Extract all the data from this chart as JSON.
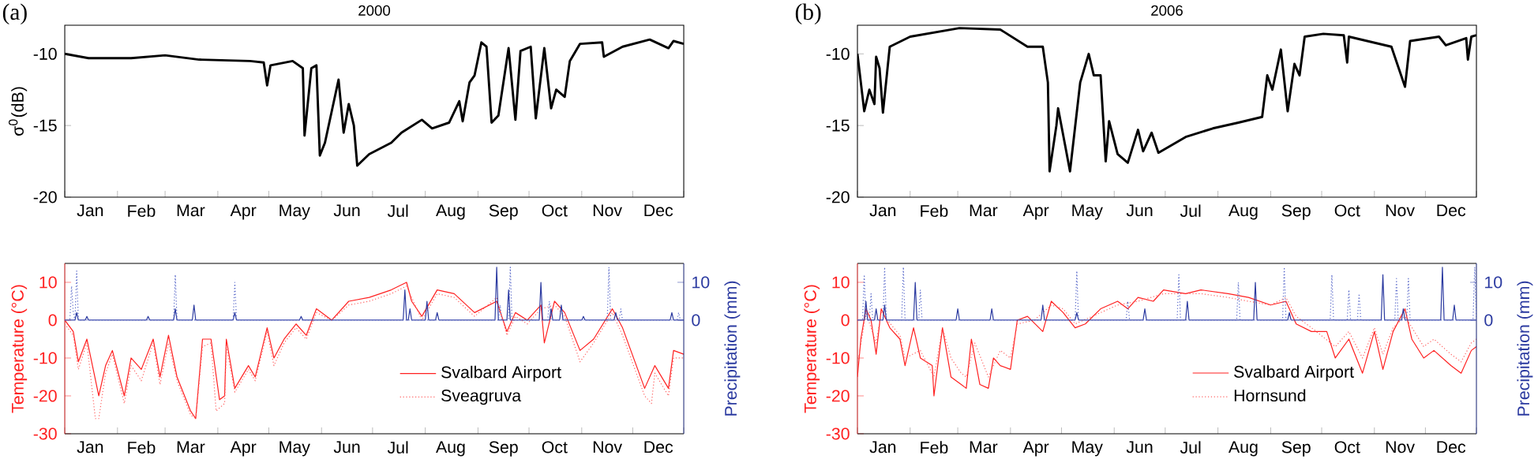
{
  "chart_data": [
    {
      "type": "line",
      "title": "2000",
      "annotations": [
        "(a)"
      ],
      "ylabel": "σ$^{0}$(dB)",
      "xlim": [
        "--01-01",
        "--12-31"
      ],
      "ylim": [
        -20,
        -8
      ],
      "yticks": [
        -10,
        -15,
        -20
      ],
      "xticks": [
        {
          "value": "--01-01",
          "label": null
        },
        {
          "value": "--01-16",
          "label": "Jan"
        },
        {
          "value": "--02-01",
          "label": null
        },
        {
          "value": "--02-15",
          "label": "Feb"
        },
        {
          "value": "--03-01",
          "label": null
        },
        {
          "value": "--03-16",
          "label": "Mar"
        },
        {
          "value": "--04-01",
          "label": null
        },
        {
          "value": "--04-16",
          "label": "Apr"
        },
        {
          "value": "--05-01",
          "label": null
        },
        {
          "value": "--05-16",
          "label": "May"
        },
        {
          "value": "--06-01",
          "label": null
        },
        {
          "value": "--06-16",
          "label": "Jun"
        },
        {
          "value": "--07-01",
          "label": null
        },
        {
          "value": "--07-16",
          "label": "Jul"
        },
        {
          "value": "--08-01",
          "label": null
        },
        {
          "value": "--08-16",
          "label": "Aug"
        },
        {
          "value": "--09-01",
          "label": null
        },
        {
          "value": "--09-16",
          "label": "Sep"
        },
        {
          "value": "--10-01",
          "label": null
        },
        {
          "value": "--10-16",
          "label": "Oct"
        },
        {
          "value": "--11-01",
          "label": null
        },
        {
          "value": "--11-16",
          "label": "Nov"
        },
        {
          "value": "--12-01",
          "label": null
        },
        {
          "value": "--12-16",
          "label": "Dec"
        },
        {
          "value": "--12-31",
          "label": null
        }
      ],
      "series": [
        {
          "color": "#000000",
          "x": [
            "--01-01",
            "--01-15",
            "--02-09",
            "--03-01",
            "--03-21",
            "--04-20",
            "--04-28",
            "--04-30",
            "--05-02",
            "--05-15",
            "--05-21",
            "--05-22",
            "--05-26",
            "--05-29",
            "--05-31",
            "--06-03",
            "--06-11",
            "--06-14",
            "--06-17",
            "--06-20",
            "--06-22",
            "--06-29",
            "--07-12",
            "--07-18",
            "--07-30",
            "--08-05",
            "--08-15",
            "--08-21",
            "--08-23",
            "--08-27",
            "--08-30",
            "--09-03",
            "--09-06",
            "--09-09",
            "--09-13",
            "--09-19",
            "--09-23",
            "--09-26",
            "--10-02",
            "--10-05",
            "--10-10",
            "--10-14",
            "--10-17",
            "--10-22",
            "--10-25",
            "--10-31",
            "--11-13",
            "--11-14",
            "--11-25",
            "--12-11",
            "--12-22",
            "--12-25",
            "--12-31"
          ],
          "values": [
            -10.0,
            -10.3,
            -10.3,
            -10.1,
            -10.4,
            -10.5,
            -10.6,
            -12.2,
            -10.8,
            -10.5,
            -11.0,
            -15.7,
            -11.0,
            -10.8,
            -17.1,
            -16.2,
            -11.8,
            -15.5,
            -13.5,
            -15.0,
            -17.8,
            -17.0,
            -16.2,
            -15.5,
            -14.6,
            -15.2,
            -14.8,
            -13.3,
            -14.7,
            -12.0,
            -11.5,
            -9.2,
            -9.5,
            -14.8,
            -14.3,
            -9.6,
            -14.6,
            -9.8,
            -9.5,
            -14.5,
            -9.6,
            -13.8,
            -12.5,
            -13.0,
            -10.5,
            -9.3,
            -9.2,
            -10.2,
            -9.5,
            -9.0,
            -9.6,
            -9.1,
            -9.3
          ]
        }
      ]
    },
    {
      "type": "line",
      "title": "2006",
      "annotations": [
        "(b)"
      ],
      "xlim": [
        "--01-01",
        "--12-31"
      ],
      "ylim": [
        -20,
        -8
      ],
      "yticks": [
        -10,
        -15,
        -20
      ],
      "xticks": [
        {
          "value": "--01-01",
          "label": null
        },
        {
          "value": "--01-16",
          "label": "Jan"
        },
        {
          "value": "--02-01",
          "label": null
        },
        {
          "value": "--02-15",
          "label": "Feb"
        },
        {
          "value": "--03-01",
          "label": null
        },
        {
          "value": "--03-16",
          "label": "Mar"
        },
        {
          "value": "--04-01",
          "label": null
        },
        {
          "value": "--04-16",
          "label": "Apr"
        },
        {
          "value": "--05-01",
          "label": null
        },
        {
          "value": "--05-16",
          "label": "May"
        },
        {
          "value": "--06-01",
          "label": null
        },
        {
          "value": "--06-16",
          "label": "Jun"
        },
        {
          "value": "--07-01",
          "label": null
        },
        {
          "value": "--07-16",
          "label": "Jul"
        },
        {
          "value": "--08-01",
          "label": null
        },
        {
          "value": "--08-16",
          "label": "Aug"
        },
        {
          "value": "--09-01",
          "label": null
        },
        {
          "value": "--09-16",
          "label": "Sep"
        },
        {
          "value": "--10-01",
          "label": null
        },
        {
          "value": "--10-16",
          "label": "Oct"
        },
        {
          "value": "--11-01",
          "label": null
        },
        {
          "value": "--11-16",
          "label": "Nov"
        },
        {
          "value": "--12-01",
          "label": null
        },
        {
          "value": "--12-16",
          "label": "Dec"
        },
        {
          "value": "--12-31",
          "label": null
        }
      ],
      "series": [
        {
          "color": "#000000",
          "x": [
            "--01-01",
            "--01-05",
            "--01-08",
            "--01-11",
            "--01-12",
            "--01-14",
            "--01-16",
            "--01-20",
            "--02-01",
            "--03-02",
            "--03-26",
            "--04-11",
            "--04-20",
            "--04-23",
            "--04-24",
            "--04-28",
            "--04-29",
            "--05-03",
            "--05-06",
            "--05-12",
            "--05-17",
            "--05-20",
            "--05-24",
            "--05-27",
            "--05-29",
            "--06-03",
            "--06-09",
            "--06-15",
            "--06-18",
            "--06-23",
            "--06-27",
            "--07-13",
            "--07-29",
            "--08-13",
            "--08-27",
            "--08-30",
            "--09-02",
            "--09-07",
            "--09-11",
            "--09-15",
            "--09-18",
            "--09-21",
            "--10-02",
            "--10-14",
            "--10-16",
            "--10-17",
            "--11-11",
            "--11-19",
            "--11-22",
            "--12-09",
            "--12-13",
            "--12-25",
            "--12-26",
            "--12-28",
            "--12-31"
          ],
          "values": [
            -10.0,
            -14.0,
            -12.5,
            -13.5,
            -10.2,
            -11.0,
            -14.1,
            -9.5,
            -8.8,
            -8.2,
            -8.3,
            -9.5,
            -9.5,
            -12.0,
            -18.2,
            -15.0,
            -13.8,
            -16.3,
            -18.2,
            -12.0,
            -10.0,
            -11.5,
            -11.5,
            -17.5,
            -14.7,
            -17.0,
            -17.6,
            -15.3,
            -16.8,
            -15.5,
            -16.9,
            -15.8,
            -15.2,
            -14.8,
            -14.4,
            -11.5,
            -12.5,
            -9.7,
            -14.0,
            -10.7,
            -11.5,
            -8.8,
            -8.6,
            -8.7,
            -10.6,
            -8.8,
            -9.5,
            -12.3,
            -9.1,
            -8.8,
            -9.4,
            -8.9,
            -10.4,
            -8.8,
            -8.7
          ]
        }
      ]
    },
    {
      "type": "line",
      "ylabel": "Temperature (°C)",
      "y2label": "Precipitation (mm)",
      "legend": "bottom",
      "xlim": [
        "--01-01",
        "--12-31"
      ],
      "ylim": [
        -30,
        15
      ],
      "yticks": [
        10,
        0,
        -10,
        -20,
        -30
      ],
      "y2lim": [
        -30,
        15
      ],
      "y2ticks": [
        0,
        10
      ],
      "xticks": [
        {
          "value": "--01-01",
          "label": null
        },
        {
          "value": "--01-16",
          "label": "Jan"
        },
        {
          "value": "--02-01",
          "label": null
        },
        {
          "value": "--02-15",
          "label": "Feb"
        },
        {
          "value": "--03-01",
          "label": null
        },
        {
          "value": "--03-16",
          "label": "Mar"
        },
        {
          "value": "--04-01",
          "label": null
        },
        {
          "value": "--04-16",
          "label": "Apr"
        },
        {
          "value": "--05-01",
          "label": null
        },
        {
          "value": "--05-16",
          "label": "May"
        },
        {
          "value": "--06-01",
          "label": null
        },
        {
          "value": "--06-16",
          "label": "Jun"
        },
        {
          "value": "--07-01",
          "label": null
        },
        {
          "value": "--07-16",
          "label": "Jul"
        },
        {
          "value": "--08-01",
          "label": null
        },
        {
          "value": "--08-16",
          "label": "Aug"
        },
        {
          "value": "--09-01",
          "label": null
        },
        {
          "value": "--09-16",
          "label": "Sep"
        },
        {
          "value": "--10-01",
          "label": null
        },
        {
          "value": "--10-16",
          "label": "Oct"
        },
        {
          "value": "--11-01",
          "label": null
        },
        {
          "value": "--11-16",
          "label": "Nov"
        },
        {
          "value": "--12-01",
          "label": null
        },
        {
          "value": "--12-16",
          "label": "Dec"
        },
        {
          "value": "--12-31",
          "label": null
        }
      ],
      "series": [
        {
          "name": "Svalbard Airport",
          "color": "#ff2020",
          "line_style": "solid",
          "x": [
            "--01-01",
            "--01-06",
            "--01-09",
            "--01-14",
            "--01-21",
            "--01-25",
            "--01-29",
            "--02-05",
            "--02-09",
            "--02-15",
            "--02-22",
            "--02-26",
            "--03-03",
            "--03-08",
            "--03-16",
            "--03-19",
            "--03-23",
            "--03-28",
            "--04-02",
            "--04-05",
            "--04-06",
            "--04-11",
            "--04-19",
            "--04-23",
            "--04-30",
            "--05-04",
            "--05-10",
            "--05-17",
            "--05-23",
            "--05-29",
            "--06-07",
            "--06-17",
            "--06-29",
            "--07-12",
            "--07-21",
            "--07-24",
            "--07-30",
            "--08-08",
            "--08-18",
            "--08-30",
            "--09-12",
            "--09-18",
            "--09-23",
            "--09-30",
            "--10-08",
            "--10-10",
            "--10-16",
            "--10-22",
            "--10-31",
            "--11-08",
            "--11-19",
            "--11-25",
            "--12-08",
            "--12-14",
            "--12-22",
            "--12-25",
            "--12-31"
          ],
          "values": [
            0,
            -3,
            -11,
            -5,
            -20,
            -12,
            -8,
            -20,
            -10,
            -13,
            -5,
            -15,
            -4,
            -15,
            -24,
            -26,
            -5,
            -5,
            -21,
            -20,
            -5,
            -18,
            -12,
            -15,
            -2,
            -10,
            -5,
            -1,
            -4,
            3,
            0,
            5,
            6,
            8,
            10,
            5,
            1,
            8,
            7,
            2,
            5,
            -3,
            2,
            0,
            4,
            -6,
            5,
            2,
            -8,
            -5,
            3,
            -2,
            -18,
            -12,
            -18,
            -8,
            -9
          ]
        },
        {
          "name": "Sveagruva",
          "color": "#ff6060",
          "line_style": "dotted",
          "x": [
            "--01-01",
            "--01-06",
            "--01-09",
            "--01-14",
            "--01-19",
            "--01-21",
            "--01-25",
            "--01-29",
            "--02-05",
            "--02-09",
            "--02-15",
            "--02-22",
            "--02-26",
            "--03-03",
            "--03-08",
            "--03-16",
            "--03-19",
            "--03-23",
            "--03-28",
            "--03-31",
            "--04-05",
            "--04-06",
            "--04-11",
            "--04-19",
            "--04-23",
            "--04-30",
            "--05-04",
            "--05-10",
            "--05-17",
            "--05-23",
            "--05-29",
            "--06-07",
            "--06-17",
            "--06-29",
            "--07-12",
            "--07-21",
            "--07-30",
            "--08-08",
            "--08-18",
            "--08-30",
            "--09-12",
            "--09-18",
            "--09-23",
            "--09-30",
            "--10-08",
            "--10-16",
            "--10-22",
            "--10-31",
            "--11-08",
            "--11-19",
            "--11-25",
            "--12-08",
            "--12-12",
            "--12-14",
            "--12-22",
            "--12-25",
            "--12-31"
          ],
          "values": [
            -1,
            -4,
            -13,
            -6,
            -26,
            -26,
            -14,
            -9,
            -22,
            -12,
            -16,
            -6,
            -17,
            -6,
            -16,
            -25,
            -26,
            -7,
            -6,
            -24,
            -22,
            -7,
            -19,
            -13,
            -16,
            -3,
            -12,
            -6,
            -2,
            -5,
            2,
            0,
            4,
            5,
            7,
            9,
            0,
            7,
            6,
            1,
            6,
            -4,
            1,
            -1,
            3,
            4,
            1,
            -11,
            -6,
            2,
            -4,
            -20,
            -22,
            -14,
            -20,
            -10,
            -10
          ]
        },
        {
          "color": "#2b3aa0",
          "line_style": "solid",
          "axis": "y2",
          "x": [
            "--01-01",
            "--01-07",
            "--01-08",
            "--01-09",
            "--01-13",
            "--01-14",
            "--01-15",
            "--02-18",
            "--02-19",
            "--02-20",
            "--03-06",
            "--03-07",
            "--03-08",
            "--03-17",
            "--03-18",
            "--03-19",
            "--04-10",
            "--04-11",
            "--04-12",
            "--05-19",
            "--05-20",
            "--05-21",
            "--07-19",
            "--07-20",
            "--07-21",
            "--07-22",
            "--07-23",
            "--07-24",
            "--08-01",
            "--08-02",
            "--08-03",
            "--08-07",
            "--08-08",
            "--08-09",
            "--09-11",
            "--09-12",
            "--09-13",
            "--09-18",
            "--09-19",
            "--09-20",
            "--10-07",
            "--10-08",
            "--10-09",
            "--10-13",
            "--10-14",
            "--10-15",
            "--10-19",
            "--10-20",
            "--10-21",
            "--11-01",
            "--11-02",
            "--11-03",
            "--11-20",
            "--11-21",
            "--11-22",
            "--12-23",
            "--12-24",
            "--12-25",
            "--12-31"
          ],
          "values": [
            0,
            0,
            2,
            0,
            0,
            1,
            0,
            0,
            1,
            0,
            0,
            3,
            0,
            0,
            4,
            0,
            0,
            2,
            0,
            0,
            1,
            0,
            0,
            8,
            0,
            0,
            3,
            0,
            0,
            5,
            0,
            0,
            2,
            0,
            0,
            14,
            0,
            0,
            8,
            0,
            0,
            10,
            0,
            0,
            3,
            0,
            0,
            4,
            0,
            0,
            1,
            0,
            0,
            2,
            0,
            0,
            2,
            0,
            0
          ]
        },
        {
          "color": "#5565c8",
          "line_style": "dotted",
          "axis": "y2",
          "x": [
            "--01-01",
            "--01-04",
            "--01-05",
            "--01-06",
            "--01-07",
            "--01-08",
            "--01-09",
            "--03-06",
            "--03-07",
            "--03-08",
            "--04-10",
            "--04-11",
            "--04-12",
            "--09-13",
            "--09-14",
            "--09-15",
            "--09-19",
            "--09-20",
            "--09-21",
            "--10-12",
            "--10-13",
            "--10-14",
            "--11-16",
            "--11-17",
            "--11-18",
            "--11-23",
            "--11-24",
            "--11-25",
            "--12-27",
            "--12-28",
            "--12-29",
            "--12-31"
          ],
          "values": [
            0,
            0,
            9,
            2,
            0,
            13,
            0,
            0,
            12,
            0,
            0,
            10,
            0,
            0,
            4,
            0,
            0,
            14,
            0,
            0,
            5,
            0,
            0,
            14,
            0,
            0,
            3,
            0,
            0,
            2,
            0,
            0
          ]
        }
      ]
    },
    {
      "type": "line",
      "ylabel": "Temperature (°C)",
      "y2label": "Precipitation (mm)",
      "legend": "bottom",
      "xlim": [
        "--01-01",
        "--12-31"
      ],
      "ylim": [
        -30,
        15
      ],
      "yticks": [
        10,
        0,
        -10,
        -20,
        -30
      ],
      "y2lim": [
        -30,
        15
      ],
      "y2ticks": [
        0,
        10
      ],
      "xticks": [
        {
          "value": "--01-01",
          "label": null
        },
        {
          "value": "--01-16",
          "label": "Jan"
        },
        {
          "value": "--02-01",
          "label": null
        },
        {
          "value": "--02-15",
          "label": "Feb"
        },
        {
          "value": "--03-01",
          "label": null
        },
        {
          "value": "--03-16",
          "label": "Mar"
        },
        {
          "value": "--04-01",
          "label": null
        },
        {
          "value": "--04-16",
          "label": "Apr"
        },
        {
          "value": "--05-01",
          "label": null
        },
        {
          "value": "--05-16",
          "label": "May"
        },
        {
          "value": "--06-01",
          "label": null
        },
        {
          "value": "--06-16",
          "label": "Jun"
        },
        {
          "value": "--07-01",
          "label": null
        },
        {
          "value": "--07-16",
          "label": "Jul"
        },
        {
          "value": "--08-01",
          "label": null
        },
        {
          "value": "--08-16",
          "label": "Aug"
        },
        {
          "value": "--09-01",
          "label": null
        },
        {
          "value": "--09-16",
          "label": "Sep"
        },
        {
          "value": "--10-01",
          "label": null
        },
        {
          "value": "--10-16",
          "label": "Oct"
        },
        {
          "value": "--11-01",
          "label": null
        },
        {
          "value": "--11-16",
          "label": "Nov"
        },
        {
          "value": "--12-01",
          "label": null
        },
        {
          "value": "--12-16",
          "label": "Dec"
        },
        {
          "value": "--12-31",
          "label": null
        }
      ],
      "series": [
        {
          "name": "Svalbard Airport",
          "color": "#ff2020",
          "line_style": "solid",
          "x": [
            "--01-01",
            "--01-03",
            "--01-06",
            "--01-09",
            "--01-12",
            "--01-15",
            "--01-20",
            "--01-26",
            "--01-29",
            "--02-03",
            "--02-07",
            "--02-14",
            "--02-15",
            "--02-20",
            "--02-25",
            "--03-03",
            "--03-06",
            "--03-09",
            "--03-14",
            "--03-19",
            "--03-22",
            "--03-26",
            "--04-01",
            "--04-05",
            "--04-11",
            "--04-20",
            "--04-25",
            "--05-02",
            "--05-09",
            "--05-15",
            "--05-24",
            "--06-03",
            "--06-09",
            "--06-15",
            "--06-24",
            "--06-30",
            "--07-13",
            "--07-22",
            "--08-07",
            "--08-19",
            "--09-01",
            "--09-10",
            "--09-16",
            "--09-25",
            "--10-04",
            "--10-09",
            "--10-17",
            "--10-25",
            "--11-01",
            "--11-06",
            "--11-12",
            "--11-19",
            "--11-23",
            "--11-30",
            "--12-06",
            "--12-16",
            "--12-22",
            "--12-28",
            "--12-31"
          ],
          "values": [
            -15,
            -5,
            3,
            0,
            -9,
            3,
            -2,
            -5,
            -12,
            -2,
            -10,
            -12,
            -20,
            -2,
            -15,
            -17,
            -18,
            -5,
            -17,
            -18,
            -10,
            -12,
            -13,
            0,
            1,
            -3,
            5,
            2,
            -2,
            -1,
            3,
            5,
            3,
            6,
            5,
            8,
            7,
            8,
            7,
            6,
            4,
            5,
            -1,
            -3,
            -3,
            -10,
            -5,
            -14,
            -3,
            -13,
            -3,
            3,
            -5,
            -10,
            -8,
            -12,
            -14,
            -8,
            -7
          ]
        },
        {
          "name": "Hornsund",
          "color": "#ff6060",
          "line_style": "dotted",
          "x": [
            "--01-01",
            "--01-06",
            "--01-12",
            "--01-15",
            "--01-26",
            "--01-29",
            "--02-07",
            "--02-15",
            "--02-20",
            "--02-25",
            "--03-03",
            "--03-06",
            "--03-11",
            "--03-19",
            "--03-26",
            "--04-01",
            "--04-05",
            "--04-15",
            "--04-25",
            "--05-02",
            "--05-09",
            "--05-24",
            "--06-03",
            "--06-15",
            "--06-30",
            "--07-22",
            "--08-07",
            "--08-19",
            "--09-01",
            "--09-10",
            "--09-16",
            "--09-25",
            "--10-09",
            "--10-17",
            "--10-25",
            "--11-01",
            "--11-06",
            "--11-12",
            "--11-19",
            "--11-30",
            "--12-06",
            "--12-16",
            "--12-22",
            "--12-28",
            "--12-31"
          ],
          "values": [
            -12,
            2,
            -6,
            2,
            -4,
            -10,
            -8,
            -15,
            -2,
            -10,
            -14,
            -15,
            -6,
            -15,
            -8,
            -10,
            -1,
            0,
            4,
            3,
            -1,
            2,
            4,
            5,
            7,
            7,
            6,
            5,
            4,
            6,
            1,
            -2,
            -7,
            -3,
            -10,
            -2,
            -9,
            -2,
            1,
            -7,
            -5,
            -9,
            -11,
            -6,
            -5
          ]
        },
        {
          "color": "#2b3aa0",
          "line_style": "solid",
          "axis": "y2",
          "x": [
            "--01-01",
            "--01-05",
            "--01-06",
            "--01-07",
            "--01-11",
            "--01-12",
            "--01-13",
            "--01-16",
            "--01-17",
            "--01-18",
            "--02-03",
            "--02-04",
            "--02-05",
            "--02-28",
            "--03-01",
            "--03-02",
            "--03-20",
            "--03-21",
            "--03-22",
            "--04-19",
            "--04-20",
            "--04-21",
            "--05-09",
            "--05-10",
            "--05-11",
            "--06-18",
            "--06-19",
            "--06-20",
            "--07-13",
            "--07-14",
            "--07-15",
            "--08-22",
            "--08-23",
            "--08-24",
            "--09-11",
            "--09-12",
            "--09-13",
            "--11-05",
            "--11-06",
            "--11-07",
            "--11-17",
            "--11-18",
            "--11-19",
            "--12-10",
            "--12-11",
            "--12-12",
            "--12-17",
            "--12-18",
            "--12-19",
            "--12-31"
          ],
          "values": [
            0,
            0,
            5,
            0,
            0,
            3,
            0,
            0,
            4,
            0,
            0,
            10,
            0,
            0,
            3,
            0,
            0,
            3,
            0,
            0,
            4,
            0,
            0,
            2,
            0,
            0,
            3,
            0,
            0,
            5,
            0,
            0,
            10,
            0,
            0,
            2,
            0,
            0,
            12,
            0,
            0,
            3,
            0,
            0,
            14,
            0,
            0,
            4,
            0,
            0
          ]
        },
        {
          "color": "#5565c8",
          "line_style": "dotted",
          "axis": "y2",
          "x": [
            "--01-01",
            "--01-04",
            "--01-05",
            "--01-06",
            "--01-08",
            "--01-09",
            "--01-10",
            "--01-16",
            "--01-17",
            "--01-18",
            "--01-27",
            "--01-28",
            "--01-29",
            "--02-06",
            "--02-07",
            "--02-08",
            "--05-09",
            "--05-10",
            "--05-11",
            "--06-08",
            "--06-09",
            "--06-10",
            "--07-08",
            "--07-09",
            "--07-10",
            "--08-12",
            "--08-13",
            "--08-14",
            "--09-08",
            "--09-09",
            "--09-10",
            "--10-06",
            "--10-07",
            "--10-08",
            "--10-16",
            "--10-17",
            "--10-18",
            "--10-22",
            "--10-23",
            "--10-24",
            "--11-13",
            "--11-14",
            "--11-15",
            "--11-20",
            "--11-21",
            "--11-22",
            "--12-29",
            "--12-30",
            "--12-31"
          ],
          "values": [
            0,
            0,
            12,
            0,
            0,
            7,
            0,
            0,
            14,
            0,
            0,
            14,
            0,
            0,
            8,
            0,
            0,
            13,
            0,
            0,
            5,
            0,
            0,
            12,
            0,
            0,
            10,
            0,
            0,
            14,
            0,
            0,
            12,
            0,
            0,
            8,
            0,
            0,
            7,
            0,
            0,
            11,
            0,
            0,
            11,
            0,
            0,
            14,
            0
          ]
        }
      ]
    }
  ]
}
